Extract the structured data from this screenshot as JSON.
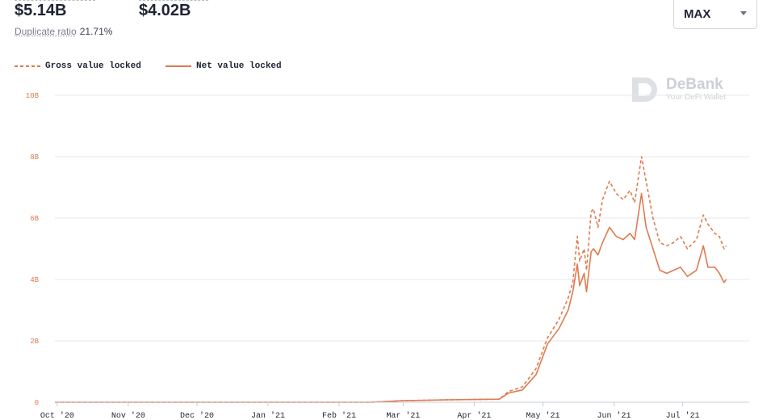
{
  "header": {
    "gross_value": "$5.14B",
    "net_value": "$4.02B",
    "duplicate_ratio_label": "Duplicate ratio",
    "duplicate_ratio_value": "21.71%"
  },
  "range_select": {
    "selected": "MAX"
  },
  "watermark": {
    "name": "DeBank",
    "tagline": "Your DeFi Wallet"
  },
  "colors": {
    "series": "#e07a50",
    "grid": "#e6e7ea",
    "axis": "#c9ccd2"
  },
  "chart_data": {
    "type": "line",
    "x_unit": "date",
    "xlim": [
      "2020-09-30",
      "2021-07-30"
    ],
    "ylim": [
      0,
      10
    ],
    "y_unit": "B",
    "y_ticks": [
      {
        "value": 0,
        "label": "0"
      },
      {
        "value": 2,
        "label": "2B"
      },
      {
        "value": 4,
        "label": "4B"
      },
      {
        "value": 6,
        "label": "6B"
      },
      {
        "value": 8,
        "label": "8B"
      },
      {
        "value": 10,
        "label": "10B"
      }
    ],
    "x_ticks": [
      {
        "date": "2020-10-01",
        "label": "Oct '20"
      },
      {
        "date": "2020-11-01",
        "label": "Nov '20"
      },
      {
        "date": "2020-12-01",
        "label": "Dec '20"
      },
      {
        "date": "2021-01-01",
        "label": "Jan '21"
      },
      {
        "date": "2021-02-01",
        "label": "Feb '21"
      },
      {
        "date": "2021-03-01",
        "label": "Mar '21"
      },
      {
        "date": "2021-04-01",
        "label": "Apr '21"
      },
      {
        "date": "2021-05-01",
        "label": "May '21"
      },
      {
        "date": "2021-06-01",
        "label": "Jun '21"
      },
      {
        "date": "2021-07-01",
        "label": "Jul '21"
      }
    ],
    "grid": true,
    "legend": "top-left",
    "series": [
      {
        "name": "Gross value locked",
        "style": "dashed",
        "points": [
          [
            "2020-09-30",
            0.0
          ],
          [
            "2021-02-15",
            0.0
          ],
          [
            "2021-03-01",
            0.05
          ],
          [
            "2021-03-20",
            0.08
          ],
          [
            "2021-04-12",
            0.1
          ],
          [
            "2021-04-16",
            0.35
          ],
          [
            "2021-04-22",
            0.5
          ],
          [
            "2021-04-28",
            1.1
          ],
          [
            "2021-05-03",
            2.1
          ],
          [
            "2021-05-08",
            2.7
          ],
          [
            "2021-05-12",
            3.4
          ],
          [
            "2021-05-14",
            3.9
          ],
          [
            "2021-05-16",
            5.4
          ],
          [
            "2021-05-17",
            4.6
          ],
          [
            "2021-05-19",
            5.0
          ],
          [
            "2021-05-20",
            4.3
          ],
          [
            "2021-05-22",
            6.2
          ],
          [
            "2021-05-23",
            6.3
          ],
          [
            "2021-05-25",
            5.7
          ],
          [
            "2021-05-27",
            6.6
          ],
          [
            "2021-05-30",
            7.2
          ],
          [
            "2021-06-02",
            6.8
          ],
          [
            "2021-06-05",
            6.6
          ],
          [
            "2021-06-08",
            6.9
          ],
          [
            "2021-06-10",
            6.5
          ],
          [
            "2021-06-13",
            8.0
          ],
          [
            "2021-06-15",
            7.2
          ],
          [
            "2021-06-18",
            6.0
          ],
          [
            "2021-06-21",
            5.2
          ],
          [
            "2021-06-24",
            5.1
          ],
          [
            "2021-06-27",
            5.2
          ],
          [
            "2021-06-30",
            5.4
          ],
          [
            "2021-07-03",
            5.0
          ],
          [
            "2021-07-07",
            5.3
          ],
          [
            "2021-07-10",
            6.1
          ],
          [
            "2021-07-12",
            5.8
          ],
          [
            "2021-07-15",
            5.5
          ],
          [
            "2021-07-17",
            5.4
          ],
          [
            "2021-07-19",
            5.0
          ],
          [
            "2021-07-20",
            5.1
          ]
        ]
      },
      {
        "name": "Net value locked",
        "style": "solid",
        "points": [
          [
            "2020-09-30",
            0.0
          ],
          [
            "2021-02-15",
            0.0
          ],
          [
            "2021-03-01",
            0.05
          ],
          [
            "2021-03-20",
            0.08
          ],
          [
            "2021-04-12",
            0.1
          ],
          [
            "2021-04-16",
            0.3
          ],
          [
            "2021-04-22",
            0.4
          ],
          [
            "2021-04-28",
            0.9
          ],
          [
            "2021-05-03",
            1.9
          ],
          [
            "2021-05-08",
            2.4
          ],
          [
            "2021-05-12",
            3.0
          ],
          [
            "2021-05-14",
            3.6
          ],
          [
            "2021-05-16",
            4.5
          ],
          [
            "2021-05-17",
            3.8
          ],
          [
            "2021-05-19",
            4.2
          ],
          [
            "2021-05-20",
            3.6
          ],
          [
            "2021-05-22",
            4.9
          ],
          [
            "2021-05-23",
            5.0
          ],
          [
            "2021-05-25",
            4.8
          ],
          [
            "2021-05-27",
            5.2
          ],
          [
            "2021-05-30",
            5.7
          ],
          [
            "2021-06-02",
            5.4
          ],
          [
            "2021-06-05",
            5.3
          ],
          [
            "2021-06-08",
            5.5
          ],
          [
            "2021-06-10",
            5.3
          ],
          [
            "2021-06-13",
            6.8
          ],
          [
            "2021-06-15",
            5.7
          ],
          [
            "2021-06-18",
            5.0
          ],
          [
            "2021-06-21",
            4.3
          ],
          [
            "2021-06-24",
            4.2
          ],
          [
            "2021-06-27",
            4.3
          ],
          [
            "2021-06-30",
            4.4
          ],
          [
            "2021-07-03",
            4.1
          ],
          [
            "2021-07-07",
            4.3
          ],
          [
            "2021-07-10",
            5.1
          ],
          [
            "2021-07-12",
            4.4
          ],
          [
            "2021-07-15",
            4.4
          ],
          [
            "2021-07-17",
            4.2
          ],
          [
            "2021-07-19",
            3.9
          ],
          [
            "2021-07-20",
            4.0
          ]
        ]
      }
    ]
  }
}
